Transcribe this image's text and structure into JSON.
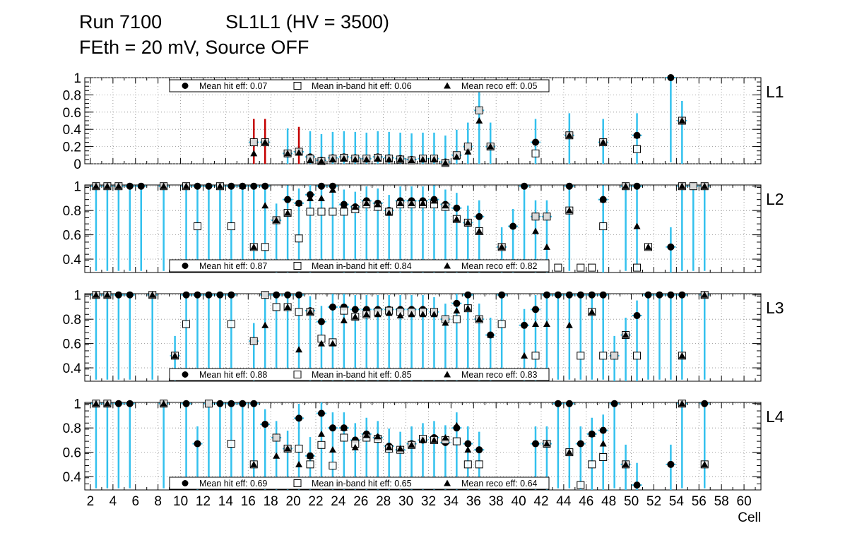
{
  "title_line1": "Run 7100            SL1L1 (HV = 3500)",
  "title_line2": "FEth = 20 mV, Source OFF",
  "xlabel": "Cell",
  "x_ticks": [
    2,
    4,
    6,
    8,
    10,
    12,
    14,
    16,
    18,
    20,
    22,
    24,
    26,
    28,
    30,
    32,
    34,
    36,
    38,
    40,
    42,
    44,
    46,
    48,
    50,
    52,
    54,
    56,
    58,
    60
  ],
  "colors": {
    "hit": "#000000",
    "inband": "#ffffff",
    "reco": "#000000",
    "err_cyan": "#33c1ee",
    "err_red": "#c40000",
    "err_purple": "#7a00c8",
    "grid": "#888888"
  },
  "chart_data": [
    {
      "type": "scatter",
      "panel": "L1",
      "xlim": [
        1.5,
        61.5
      ],
      "ylim": [
        0,
        1.0
      ],
      "y_ticks": [
        "0",
        "0.2",
        "0.4",
        "0.6",
        "0.8",
        "1"
      ],
      "y_tick_values": [
        0,
        0.2,
        0.4,
        0.6,
        0.8,
        1.0
      ],
      "legend": [
        "Mean hit  eff: 0.07",
        "Mean in-band hit eff: 0.06",
        "Mean reco eff: 0.05"
      ],
      "legend_position": "top",
      "grid": true,
      "series": [
        {
          "name": "Mean hit  eff: 0.07",
          "marker": "circle",
          "x": [
            16.5,
            17.5,
            19.5,
            20.5,
            21.5,
            22.5,
            23.5,
            24.5,
            25.5,
            26.5,
            27.5,
            28.5,
            29.5,
            30.5,
            31.5,
            32.5,
            33.5,
            34.5,
            35.5,
            36.5,
            37.5,
            41.5,
            44.5,
            47.5,
            50.5,
            53.5,
            54.5
          ],
          "y": [
            0.25,
            0.25,
            0.12,
            0.14,
            0.08,
            0.04,
            0.07,
            0.08,
            0.07,
            0.06,
            0.08,
            0.07,
            0.06,
            0.05,
            0.06,
            0.06,
            0.02,
            0.1,
            0.2,
            0.62,
            0.2,
            0.25,
            0.33,
            0.25,
            0.33,
            1.0,
            0.5
          ]
        },
        {
          "name": "Mean in-band hit eff: 0.06",
          "marker": "square-open",
          "x": [
            16.5,
            17.5,
            19.5,
            20.5,
            21.5,
            22.5,
            23.5,
            24.5,
            25.5,
            26.5,
            27.5,
            28.5,
            29.5,
            30.5,
            31.5,
            32.5,
            33.5,
            34.5,
            35.5,
            36.5,
            37.5,
            41.5,
            44.5,
            47.5,
            50.5,
            54.5
          ],
          "y": [
            0.25,
            0.25,
            0.12,
            0.14,
            0.06,
            0.03,
            0.06,
            0.07,
            0.06,
            0.06,
            0.07,
            0.06,
            0.05,
            0.04,
            0.06,
            0.06,
            0.01,
            0.1,
            0.2,
            0.62,
            0.2,
            0.12,
            0.33,
            0.25,
            0.17,
            0.5
          ]
        },
        {
          "name": "Mean reco eff: 0.05",
          "marker": "triangle",
          "x": [
            16.5,
            17.5,
            19.5,
            20.5,
            21.5,
            22.5,
            23.5,
            24.5,
            25.5,
            26.5,
            27.5,
            28.5,
            29.5,
            30.5,
            31.5,
            32.5,
            33.5,
            34.5,
            35.5,
            36.5,
            37.5,
            44.5,
            47.5,
            50.5,
            54.5
          ],
          "y": [
            0.12,
            0.25,
            0.12,
            0.13,
            0.04,
            0.03,
            0.05,
            0.06,
            0.05,
            0.05,
            0.06,
            0.05,
            0.05,
            0.04,
            0.05,
            0.05,
            0.01,
            0.08,
            0.14,
            0.5,
            0.2,
            0.33,
            0.25,
            0.33,
            0.5
          ]
        }
      ]
    },
    {
      "type": "scatter",
      "panel": "L2",
      "xlim": [
        1.5,
        61.5
      ],
      "ylim": [
        0.29,
        1.01
      ],
      "y_ticks": [
        "0.4",
        "0.6",
        "0.8",
        "1"
      ],
      "y_tick_values": [
        0.4,
        0.6,
        0.8,
        1.0
      ],
      "legend": [
        "Mean hit  eff: 0.87",
        "Mean in-band hit eff: 0.84",
        "Mean reco eff: 0.82"
      ],
      "legend_position": "bottom",
      "grid": true,
      "series": [
        {
          "name": "Mean hit  eff: 0.87",
          "marker": "circle",
          "x": [
            2.5,
            3.5,
            4.5,
            5.5,
            6.5,
            8.5,
            10.5,
            11.5,
            12.5,
            13.5,
            14.5,
            15.5,
            16.5,
            17.5,
            18.5,
            19.5,
            20.5,
            21.5,
            22.5,
            23.5,
            24.5,
            25.5,
            26.5,
            27.5,
            28.5,
            29.5,
            30.5,
            31.5,
            32.5,
            33.5,
            34.5,
            35.5,
            36.5,
            38.5,
            39.5,
            40.5,
            41.5,
            42.5,
            44.5,
            47.5,
            49.5,
            50.5,
            53.5,
            54.5,
            55.5,
            56.5
          ],
          "y": [
            1,
            1,
            1,
            1,
            1,
            1,
            1,
            1,
            1,
            1,
            1,
            1,
            1,
            1,
            0.72,
            0.89,
            0.86,
            0.93,
            1,
            1,
            0.85,
            0.83,
            0.88,
            0.86,
            0.8,
            0.88,
            0.88,
            0.88,
            0.89,
            0.85,
            0.82,
            0.7,
            0.75,
            0.5,
            0.67,
            1,
            0.75,
            0.75,
            1,
            0.89,
            1,
            1,
            0.5,
            1,
            1,
            1
          ]
        },
        {
          "name": "Mean in-band hit eff: 0.84",
          "marker": "square-open",
          "x": [
            2.5,
            3.5,
            4.5,
            8.5,
            10.5,
            11.5,
            13.5,
            14.5,
            16.5,
            17.5,
            18.5,
            19.5,
            20.5,
            21.5,
            22.5,
            23.5,
            24.5,
            25.5,
            26.5,
            27.5,
            28.5,
            29.5,
            30.5,
            31.5,
            32.5,
            33.5,
            34.5,
            35.5,
            36.5,
            38.5,
            41.5,
            42.5,
            43.5,
            44.5,
            45.5,
            46.5,
            47.5,
            49.5,
            50.5,
            51.5,
            54.5,
            55.5,
            56.5
          ],
          "y": [
            1,
            1,
            1,
            1,
            1,
            0.67,
            1,
            0.67,
            0.5,
            0.5,
            0.72,
            0.78,
            0.57,
            0.79,
            0.79,
            0.79,
            0.79,
            0.81,
            0.85,
            0.83,
            0.79,
            0.85,
            0.85,
            0.85,
            0.85,
            0.83,
            0.73,
            0.7,
            0.63,
            0.5,
            0.75,
            0.75,
            0.33,
            0.8,
            0.33,
            0.33,
            0.67,
            1,
            0.33,
            0.5,
            1,
            1,
            1
          ]
        },
        {
          "name": "Mean reco eff: 0.82",
          "marker": "triangle",
          "x": [
            2.5,
            3.5,
            4.5,
            8.5,
            10.5,
            13.5,
            15.5,
            16.5,
            17.5,
            18.5,
            19.5,
            20.5,
            21.5,
            22.5,
            23.5,
            24.5,
            25.5,
            26.5,
            27.5,
            28.5,
            29.5,
            30.5,
            31.5,
            32.5,
            33.5,
            34.5,
            35.5,
            36.5,
            38.5,
            41.5,
            42.5,
            44.5,
            47.5,
            49.5,
            50.5,
            51.5,
            54.5,
            56.5
          ],
          "y": [
            1,
            1,
            1,
            1,
            1,
            1,
            1,
            0.5,
            0.84,
            0.72,
            0.78,
            0.86,
            0.9,
            0.9,
            0.97,
            0.84,
            0.83,
            0.86,
            0.85,
            0.78,
            0.86,
            0.86,
            0.86,
            0.88,
            0.84,
            0.73,
            0.7,
            0.63,
            0.5,
            0.63,
            0.5,
            0.8,
            0.89,
            1,
            0.67,
            0.5,
            1,
            1
          ]
        }
      ]
    },
    {
      "type": "scatter",
      "panel": "L3",
      "xlim": [
        1.5,
        61.5
      ],
      "ylim": [
        0.29,
        1.01
      ],
      "y_ticks": [
        "0.4",
        "0.6",
        "0.8",
        "1"
      ],
      "y_tick_values": [
        0.4,
        0.6,
        0.8,
        1.0
      ],
      "legend": [
        "Mean hit  eff: 0.88",
        "Mean in-band hit eff: 0.85",
        "Mean reco eff: 0.83"
      ],
      "legend_position": "bottom",
      "grid": true,
      "series": [
        {
          "name": "Mean hit  eff: 0.88",
          "marker": "circle",
          "x": [
            2.5,
            3.5,
            4.5,
            5.5,
            7.5,
            9.5,
            10.5,
            11.5,
            12.5,
            13.5,
            14.5,
            16.5,
            17.5,
            18.5,
            19.5,
            20.5,
            21.5,
            22.5,
            23.5,
            24.5,
            25.5,
            26.5,
            27.5,
            28.5,
            29.5,
            30.5,
            31.5,
            32.5,
            33.5,
            34.5,
            35.5,
            36.5,
            37.5,
            38.5,
            40.5,
            41.5,
            42.5,
            43.5,
            44.5,
            45.5,
            46.5,
            47.5,
            48.5,
            49.5,
            50.5,
            51.5,
            52.5,
            53.5,
            54.5,
            56.5
          ],
          "y": [
            1,
            1,
            1,
            1,
            1,
            0.5,
            1,
            1,
            1,
            1,
            1,
            0.62,
            1,
            1,
            1,
            1,
            0.87,
            0.78,
            0.9,
            0.9,
            0.88,
            0.88,
            0.88,
            0.88,
            0.88,
            0.88,
            0.88,
            0.86,
            0.8,
            0.93,
            1,
            0.8,
            0.67,
            1,
            0.75,
            0.88,
            1,
            1,
            1,
            1,
            1,
            1,
            0.5,
            0.67,
            0.83,
            1,
            1,
            1,
            1,
            1
          ]
        },
        {
          "name": "Mean in-band hit eff: 0.85",
          "marker": "square-open",
          "x": [
            2.5,
            3.5,
            7.5,
            9.5,
            10.5,
            14.5,
            16.5,
            17.5,
            18.5,
            19.5,
            20.5,
            21.5,
            22.5,
            23.5,
            24.5,
            25.5,
            26.5,
            27.5,
            28.5,
            29.5,
            30.5,
            31.5,
            32.5,
            33.5,
            34.5,
            35.5,
            36.5,
            38.5,
            41.5,
            45.5,
            46.5,
            47.5,
            48.5,
            49.5,
            50.5,
            54.5,
            56.5
          ],
          "y": [
            1,
            1,
            1,
            0.5,
            0.76,
            0.76,
            0.62,
            1,
            0.9,
            0.9,
            0.86,
            0.86,
            0.64,
            0.61,
            0.87,
            0.82,
            0.84,
            0.86,
            0.87,
            0.86,
            0.86,
            0.86,
            0.86,
            0.8,
            0.8,
            0.89,
            0.8,
            0.76,
            0.5,
            0.5,
            0.86,
            0.5,
            0.5,
            0.67,
            0.5,
            0.5,
            1
          ]
        },
        {
          "name": "Mean reco eff: 0.83",
          "marker": "triangle",
          "x": [
            2.5,
            3.5,
            7.5,
            9.5,
            17.5,
            19.5,
            20.5,
            21.5,
            22.5,
            23.5,
            24.5,
            25.5,
            26.5,
            27.5,
            28.5,
            29.5,
            30.5,
            31.5,
            32.5,
            33.5,
            34.5,
            35.5,
            36.5,
            37.5,
            40.5,
            41.5,
            42.5,
            44.5,
            46.5,
            49.5,
            54.5,
            56.5
          ],
          "y": [
            1,
            1,
            1,
            0.5,
            0.75,
            0.9,
            0.55,
            0.86,
            0.6,
            0.6,
            0.79,
            0.82,
            0.84,
            0.84,
            0.85,
            0.83,
            0.84,
            0.84,
            0.84,
            0.77,
            0.87,
            0.89,
            0.8,
            0.67,
            0.5,
            0.76,
            0.76,
            0.75,
            0.86,
            0.67,
            0.5,
            1
          ]
        }
      ]
    },
    {
      "type": "scatter",
      "panel": "L4",
      "xlim": [
        1.5,
        61.5
      ],
      "ylim": [
        0.29,
        1.01
      ],
      "y_ticks": [
        "0.4",
        "0.6",
        "0.8",
        "1"
      ],
      "y_tick_values": [
        0.4,
        0.6,
        0.8,
        1.0
      ],
      "legend": [
        "Mean hit  eff: 0.69",
        "Mean in-band hit eff: 0.65",
        "Mean reco eff: 0.64"
      ],
      "legend_position": "bottom",
      "grid": true,
      "series": [
        {
          "name": "Mean hit  eff: 0.69",
          "marker": "circle",
          "x": [
            2.5,
            3.5,
            4.5,
            5.5,
            8.5,
            10.5,
            11.5,
            12.5,
            13.5,
            14.5,
            15.5,
            16.5,
            17.5,
            18.5,
            19.5,
            20.5,
            21.5,
            22.5,
            23.5,
            24.5,
            25.5,
            26.5,
            27.5,
            28.5,
            29.5,
            30.5,
            31.5,
            32.5,
            33.5,
            34.5,
            35.5,
            36.5,
            41.5,
            42.5,
            43.5,
            44.5,
            45.5,
            46.5,
            47.5,
            48.5,
            49.5,
            50.5,
            53.5,
            54.5,
            56.5
          ],
          "y": [
            1,
            1,
            1,
            1,
            1,
            1,
            0.67,
            1,
            1,
            1,
            1,
            1,
            0.83,
            0.72,
            0.63,
            0.88,
            0.57,
            0.92,
            0.8,
            0.8,
            0.7,
            0.75,
            0.72,
            0.65,
            0.62,
            0.67,
            0.7,
            0.72,
            0.68,
            0.8,
            0.67,
            0.62,
            0.67,
            0.67,
            1,
            1,
            0.67,
            0.75,
            0.78,
            1,
            0.5,
            0.33,
            0.5,
            1,
            1
          ]
        },
        {
          "name": "Mean in-band hit eff: 0.65",
          "marker": "square-open",
          "x": [
            2.5,
            3.5,
            8.5,
            12.5,
            14.5,
            16.5,
            18.5,
            19.5,
            20.5,
            21.5,
            22.5,
            23.5,
            24.5,
            25.5,
            26.5,
            27.5,
            28.5,
            29.5,
            30.5,
            31.5,
            32.5,
            33.5,
            34.5,
            35.5,
            36.5,
            42.5,
            44.5,
            45.5,
            46.5,
            47.5,
            49.5,
            54.5,
            56.5
          ],
          "y": [
            1,
            1,
            1,
            1,
            0.67,
            0.5,
            0.72,
            0.63,
            0.63,
            0.5,
            0.66,
            0.49,
            0.72,
            0.67,
            0.72,
            0.71,
            0.63,
            0.62,
            0.66,
            0.71,
            0.7,
            0.7,
            0.69,
            0.5,
            0.5,
            0.67,
            0.6,
            0.33,
            0.5,
            0.56,
            0.5,
            1,
            0.5
          ]
        },
        {
          "name": "Mean reco eff: 0.64",
          "marker": "triangle",
          "x": [
            2.5,
            3.5,
            8.5,
            16.5,
            18.5,
            19.5,
            20.5,
            21.5,
            22.5,
            23.5,
            24.5,
            25.5,
            26.5,
            27.5,
            28.5,
            29.5,
            30.5,
            31.5,
            32.5,
            33.5,
            34.5,
            35.5,
            42.5,
            44.5,
            46.5,
            47.5,
            49.5,
            54.5,
            56.5
          ],
          "y": [
            1,
            1,
            1,
            0.5,
            0.57,
            0.63,
            0.5,
            0.57,
            0.75,
            0.62,
            0.8,
            0.64,
            0.74,
            0.73,
            0.64,
            0.63,
            0.66,
            0.7,
            0.7,
            0.72,
            0.82,
            0.62,
            0.67,
            0.6,
            0.75,
            0.67,
            0.5,
            1,
            0.5
          ]
        }
      ]
    }
  ]
}
